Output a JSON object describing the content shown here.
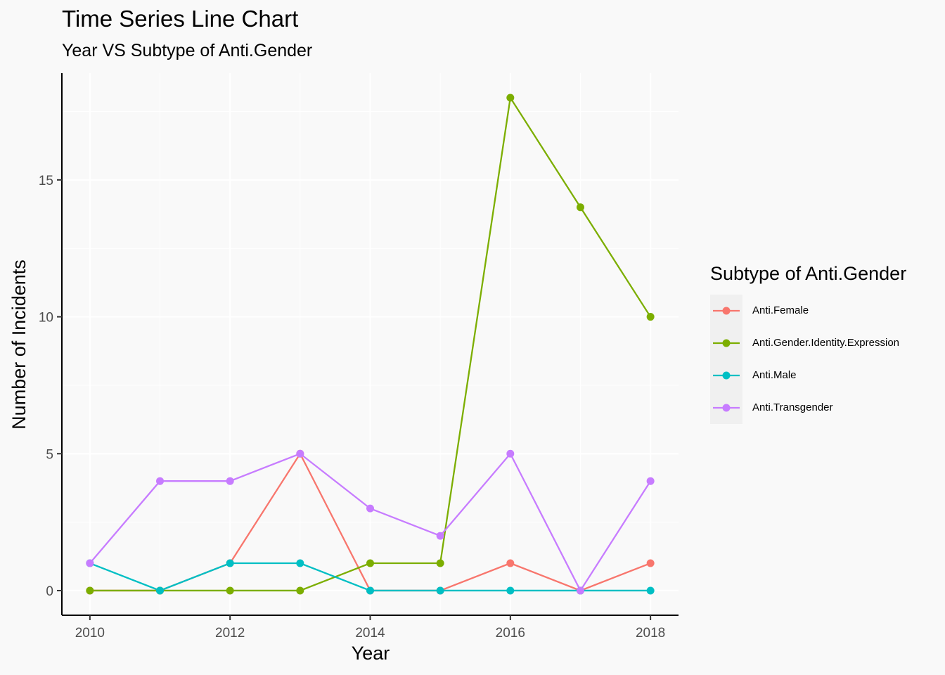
{
  "chart_data": {
    "type": "line",
    "title": "Time Series Line Chart",
    "subtitle": "Year VS Subtype of Anti.Gender",
    "xlabel": "Year",
    "ylabel": "Number of Incidents",
    "x": [
      2010,
      2011,
      2012,
      2013,
      2014,
      2015,
      2016,
      2017,
      2018
    ],
    "xlim": [
      2009.6,
      2018.4
    ],
    "ylim": [
      -0.9,
      18.9
    ],
    "xticks": [
      2010,
      2012,
      2014,
      2016,
      2018
    ],
    "yticks": [
      0,
      5,
      10,
      15
    ],
    "grid": true,
    "legend": {
      "title": "Subtype of Anti.Gender",
      "placement": "right"
    },
    "series": [
      {
        "name": "Anti.Female",
        "color": "#F8766D",
        "values": [
          0,
          0,
          1,
          5,
          0,
          0,
          1,
          0,
          1
        ]
      },
      {
        "name": "Anti.Gender.Identity.Expression",
        "color": "#7CAE00",
        "values": [
          0,
          0,
          0,
          0,
          1,
          1,
          18,
          14,
          10
        ]
      },
      {
        "name": "Anti.Male",
        "color": "#00BFC4",
        "values": [
          1,
          0,
          1,
          1,
          0,
          0,
          0,
          0,
          0
        ]
      },
      {
        "name": "Anti.Transgender",
        "color": "#C77CFF",
        "values": [
          1,
          4,
          4,
          5,
          3,
          2,
          5,
          0,
          4
        ]
      }
    ]
  }
}
